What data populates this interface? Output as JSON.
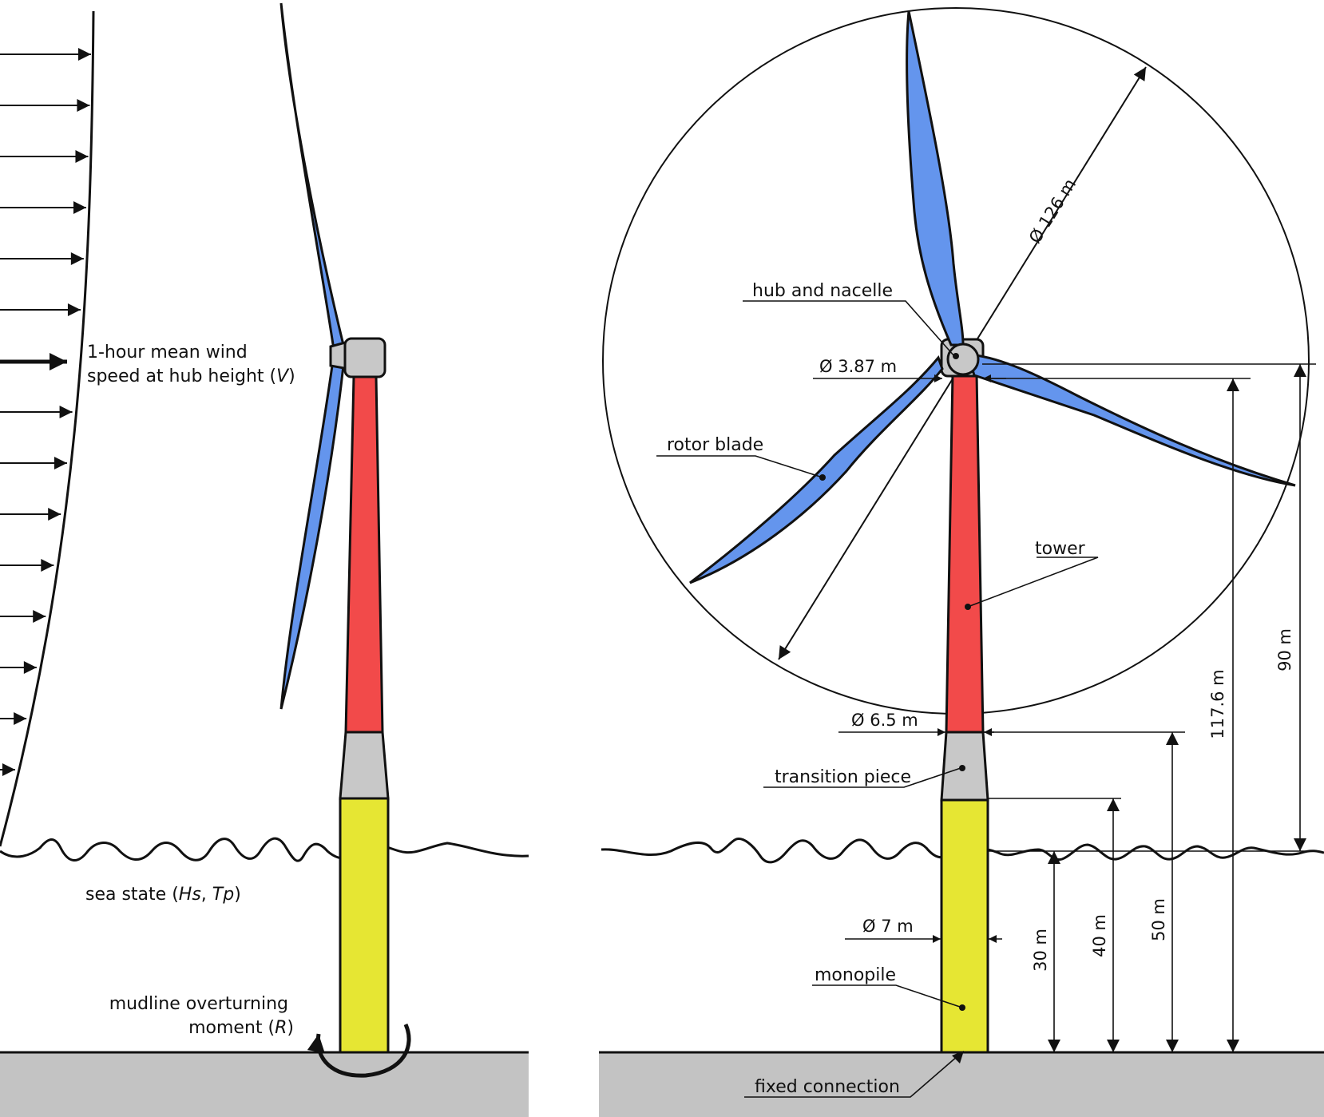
{
  "colors": {
    "blade": "#6495ed",
    "tower": "#f24a4a",
    "transition_piece": "#c8c8c8",
    "monopile": "#e6e633",
    "seabed": "#c3c3c3",
    "hub": "#c8c8c8",
    "line": "#111111"
  },
  "left_panel": {
    "wind_label_line1": "1-hour mean wind",
    "wind_label_line2": "speed at hub height (",
    "wind_label_var": "V",
    "wind_label_close": ")",
    "sea_state_prefix": "sea state (",
    "sea_state_hs": "Hs",
    "sea_state_sep": ", ",
    "sea_state_tp": "Tp",
    "sea_state_close": ")",
    "moment_line1": "mudline overturning",
    "moment_line2_prefix": "moment (",
    "moment_var": "R",
    "moment_close": ")"
  },
  "right_panel": {
    "hub_and_nacelle": "hub and nacelle",
    "rotor_blade": "rotor blade",
    "tower": "tower",
    "transition_piece": "transition piece",
    "monopile": "monopile",
    "fixed_connection": "fixed connection",
    "dim_rotor_diameter": "Ø 126 m",
    "dim_hub_diameter": "Ø 3.87 m",
    "dim_tower_base_diameter": "Ø 6.5 m",
    "dim_monopile_diameter": "Ø 7 m",
    "dim_hub_height_msl": "90 m",
    "dim_hub_height_mudline": "117.6 m",
    "dim_tp_top": "50 m",
    "dim_tp_bottom": "40 m",
    "dim_water_depth": "30 m"
  }
}
